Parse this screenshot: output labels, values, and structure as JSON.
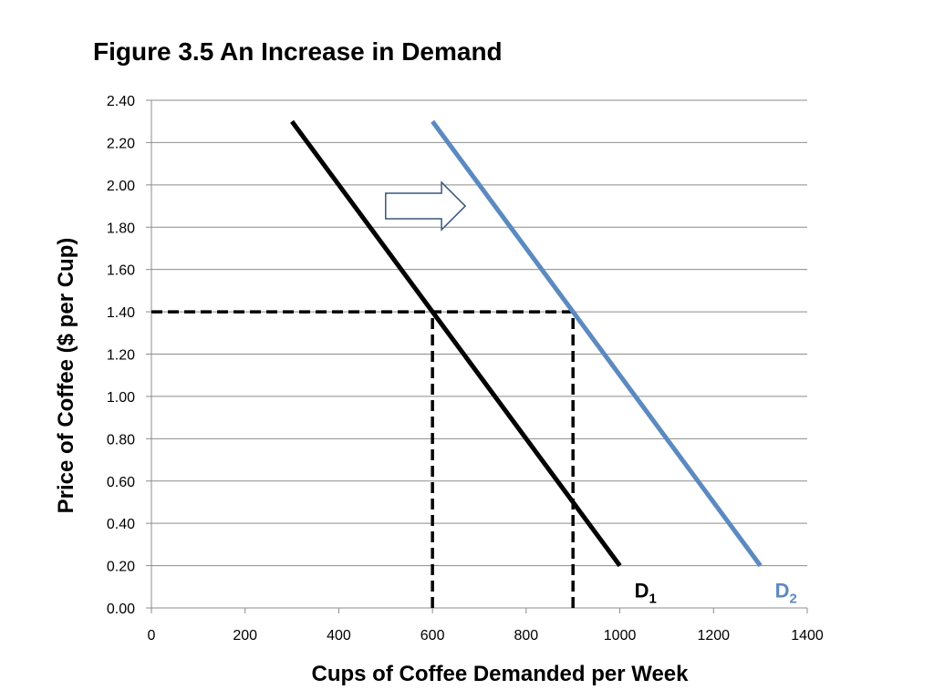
{
  "chart_data": {
    "type": "line",
    "title": "Figure 3.5  An Increase in Demand",
    "xlabel": "Cups of Coffee Demanded per Week",
    "ylabel": "Price of Coffee ($ per Cup)",
    "xlim": [
      0,
      1400
    ],
    "ylim": [
      0,
      2.4
    ],
    "x_ticks": [
      "0",
      "200",
      "400",
      "600",
      "800",
      "1000",
      "1200",
      "1400"
    ],
    "y_ticks": [
      "0.00",
      "0.20",
      "0.40",
      "0.60",
      "0.80",
      "1.00",
      "1.20",
      "1.40",
      "1.60",
      "1.80",
      "2.00",
      "2.20",
      "2.40"
    ],
    "grid": "horizontal",
    "series": [
      {
        "name": "D1",
        "label_main": "D",
        "label_sub": "1",
        "color": "#000000",
        "x": [
          300,
          1000
        ],
        "y": [
          2.3,
          0.2
        ]
      },
      {
        "name": "D2",
        "label_main": "D",
        "label_sub": "2",
        "color": "#5b8ac0",
        "x": [
          600,
          1300
        ],
        "y": [
          2.3,
          0.2
        ]
      }
    ],
    "reference_lines": [
      {
        "kind": "horizontal",
        "x": [
          0,
          900
        ],
        "y": 1.4,
        "color": "#000000"
      },
      {
        "kind": "vertical",
        "x": 600,
        "y": [
          0,
          1.4
        ],
        "color": "#000000"
      },
      {
        "kind": "vertical",
        "x": 900,
        "y": [
          0,
          1.4
        ],
        "color": "#000000"
      }
    ],
    "annotation": {
      "type": "arrow",
      "direction": "right",
      "x": [
        500,
        670
      ],
      "y": 1.9
    }
  }
}
